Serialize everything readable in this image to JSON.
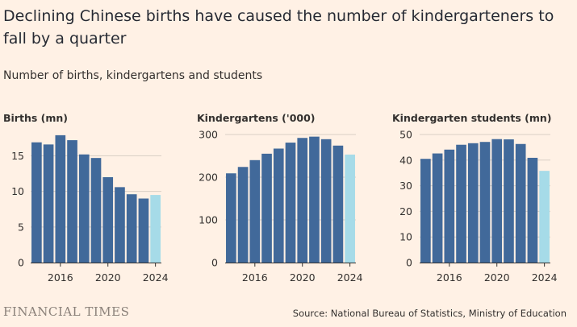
{
  "title": "Declining Chinese births have caused the number of kindergarteners to fall by a quarter",
  "subtitle": "Number of births, kindergartens and students",
  "source": "Source: National Bureau of Statistics, Ministry of Education",
  "logo": "FINANCIAL TIMES",
  "colors": {
    "bar": "#41699a",
    "highlight": "#a6dbe8",
    "background": "#fff1e5"
  },
  "chart_data": [
    {
      "type": "bar",
      "title": "Births (mn)",
      "x": [
        2014,
        2015,
        2016,
        2017,
        2018,
        2019,
        2020,
        2021,
        2022,
        2023,
        2024
      ],
      "values": [
        16.9,
        16.6,
        17.9,
        17.2,
        15.2,
        14.7,
        12.0,
        10.6,
        9.6,
        9.0,
        9.5
      ],
      "highlight_last": true,
      "ylim": [
        0,
        18
      ],
      "yticks": [
        0,
        5,
        10,
        15
      ],
      "xticks": [
        "2016",
        "2020",
        "2024"
      ],
      "xtick_values": [
        2016,
        2020,
        2024
      ],
      "grid": true
    },
    {
      "type": "bar",
      "title": "Kindergartens ('000)",
      "x": [
        2014,
        2015,
        2016,
        2017,
        2018,
        2019,
        2020,
        2021,
        2022,
        2023,
        2024
      ],
      "values": [
        209,
        224,
        240,
        255,
        267,
        281,
        292,
        295,
        289,
        274,
        253
      ],
      "highlight_last": true,
      "ylim": [
        0,
        300
      ],
      "yticks": [
        0,
        100,
        200,
        300
      ],
      "xticks": [
        "2016",
        "2020",
        "2024"
      ],
      "xtick_values": [
        2016,
        2020,
        2024
      ],
      "grid": true
    },
    {
      "type": "bar",
      "title": "Kindergarten students (mn)",
      "x": [
        2014,
        2015,
        2016,
        2017,
        2018,
        2019,
        2020,
        2021,
        2022,
        2023,
        2024
      ],
      "values": [
        40.5,
        42.6,
        44.1,
        46.0,
        46.6,
        47.1,
        48.2,
        48.1,
        46.3,
        40.9,
        35.8
      ],
      "highlight_last": true,
      "ylim": [
        0,
        50
      ],
      "yticks": [
        0,
        10,
        20,
        30,
        40,
        50
      ],
      "xticks": [
        "2016",
        "2020",
        "2024"
      ],
      "xtick_values": [
        2016,
        2020,
        2024
      ],
      "grid": true
    }
  ]
}
